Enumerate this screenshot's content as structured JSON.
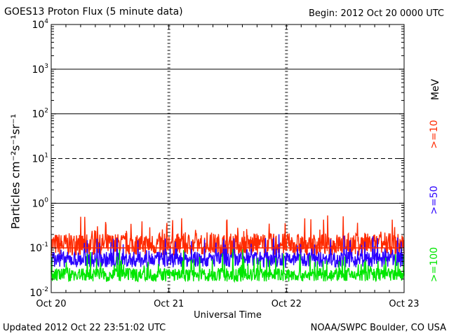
{
  "title": "GOES13 Proton Flux (5 minute data)",
  "begin_label": "Begin: 2012 Oct 20 0000 UTC",
  "updated_label": "Updated 2012 Oct 22 23:51:02 UTC",
  "credit_label": "NOAA/SWPC Boulder, CO USA",
  "colors": {
    "red": "#ff2a00",
    "blue": "#2a00ff",
    "green": "#00e600"
  },
  "chart_data": {
    "type": "line",
    "ylabel": "Particles cm⁻²s⁻¹sr⁻¹",
    "xlabel": "Universal Time",
    "yscale": "log",
    "ylim": [
      0.01,
      10000
    ],
    "xlim": [
      0,
      3
    ],
    "x_ticks": [
      {
        "value": 0,
        "label": "Oct 20"
      },
      {
        "value": 1,
        "label": "Oct 21"
      },
      {
        "value": 2,
        "label": "Oct 22"
      },
      {
        "value": 3,
        "label": "Oct 23"
      }
    ],
    "y_ticks": [
      {
        "exp": -2,
        "base": "10",
        "sup": "-2"
      },
      {
        "exp": -1,
        "base": "10",
        "sup": "-1"
      },
      {
        "exp": 0,
        "base": "10",
        "sup": "0"
      },
      {
        "exp": 1,
        "base": "10",
        "sup": "1"
      },
      {
        "exp": 2,
        "base": "10",
        "sup": "2"
      },
      {
        "exp": 3,
        "base": "10",
        "sup": "3"
      },
      {
        "exp": 4,
        "base": "10",
        "sup": "4"
      }
    ],
    "grid_solid": [
      0,
      2,
      3
    ],
    "grid_dashed": [
      -1,
      1
    ],
    "threshold_line": 0.1,
    "units_label": "MeV",
    "series": [
      {
        "name": ">=10",
        "color": "#ff2a00",
        "base": 0.12,
        "spread": 0.5
      },
      {
        "name": ">=50",
        "color": "#2a00ff",
        "base": 0.055,
        "spread": 0.35
      },
      {
        "name": ">=100",
        "color": "#00e600",
        "base": 0.025,
        "spread": 0.3
      }
    ]
  }
}
